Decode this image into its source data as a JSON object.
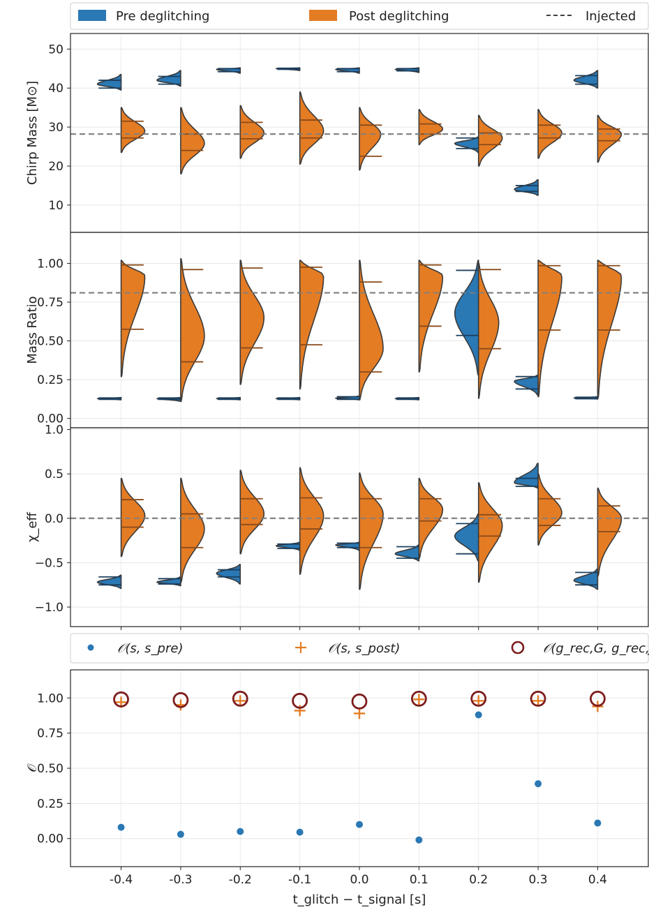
{
  "legend_top": {
    "pre": "Pre deglitching",
    "post": "Post deglitching",
    "injected": "Injected"
  },
  "legend_bottom": {
    "pre_overlap": "𝒪(s, s_pre)",
    "post_overlap": "𝒪(s, s_post)",
    "recovered_overlap": "𝒪(g_rec,G, g_rec,J)"
  },
  "colors": {
    "pre": "#2a78b4",
    "post": "#e47c24",
    "injected": "#808080",
    "recovered": "#7d1d1d"
  },
  "xlabel": "t_glitch − t_signal [s]",
  "x_ticks": [
    "-0.4",
    "-0.3",
    "-0.2",
    "-0.1",
    "0.0",
    "0.1",
    "0.2",
    "0.3",
    "0.4"
  ],
  "chart_data": [
    {
      "type": "violin",
      "ylabel": "Chirp Mass [M⊙]",
      "ylim": [
        3,
        54
      ],
      "yticks": [
        10,
        20,
        30,
        40,
        50
      ],
      "injected": 28.2,
      "x": [
        -0.4,
        -0.3,
        -0.2,
        -0.1,
        0.0,
        0.1,
        0.2,
        0.3,
        0.4
      ],
      "pre": [
        {
          "lo": 39.5,
          "hi": 43.5,
          "mode": 41.0,
          "q_lo": 40.0,
          "q_hi": 42.0,
          "w": 1.0
        },
        {
          "lo": 40.5,
          "hi": 44.5,
          "mode": 42.0,
          "q_lo": 41.0,
          "q_hi": 43.0,
          "w": 1.0
        },
        {
          "lo": 43.8,
          "hi": 45.2,
          "mode": 44.8,
          "q_lo": 44.2,
          "q_hi": 45.0,
          "w": 1.0
        },
        {
          "lo": 44.5,
          "hi": 45.2,
          "mode": 45.0,
          "q_lo": 44.8,
          "q_hi": 45.1,
          "w": 1.0
        },
        {
          "lo": 43.8,
          "hi": 45.2,
          "mode": 44.8,
          "q_lo": 44.2,
          "q_hi": 45.0,
          "w": 1.0
        },
        {
          "lo": 44.0,
          "hi": 45.2,
          "mode": 44.8,
          "q_lo": 44.4,
          "q_hi": 45.0,
          "w": 1.0
        },
        {
          "lo": 23.5,
          "hi": 27.5,
          "mode": 25.8,
          "q_lo": 24.5,
          "q_hi": 27.2,
          "w": 1.0
        },
        {
          "lo": 12.5,
          "hi": 16.5,
          "mode": 14.0,
          "q_lo": 13.5,
          "q_hi": 15.0,
          "w": 1.0
        },
        {
          "lo": 40.0,
          "hi": 44.5,
          "mode": 42.0,
          "q_lo": 41.0,
          "q_hi": 43.2,
          "w": 1.0
        }
      ],
      "post": [
        {
          "lo": 23.5,
          "hi": 35.0,
          "mode": 29.0,
          "q_lo": 27.2,
          "q_hi": 31.5,
          "w": 1.0
        },
        {
          "lo": 18.0,
          "hi": 35.0,
          "mode": 25.8,
          "q_lo": 24.0,
          "q_hi": 28.2,
          "w": 1.0
        },
        {
          "lo": 22.0,
          "hi": 35.5,
          "mode": 28.5,
          "q_lo": 27.0,
          "q_hi": 31.2,
          "w": 1.0
        },
        {
          "lo": 20.5,
          "hi": 39.0,
          "mode": 29.0,
          "q_lo": 27.2,
          "q_hi": 31.8,
          "w": 1.0
        },
        {
          "lo": 19.0,
          "hi": 35.0,
          "mode": 28.2,
          "q_lo": 22.5,
          "q_hi": 30.5,
          "w": 0.9
        },
        {
          "lo": 25.5,
          "hi": 34.5,
          "mode": 29.5,
          "q_lo": 28.2,
          "q_hi": 30.8,
          "w": 1.0
        },
        {
          "lo": 20.0,
          "hi": 33.0,
          "mode": 27.2,
          "q_lo": 25.5,
          "q_hi": 28.5,
          "w": 1.0
        },
        {
          "lo": 22.0,
          "hi": 34.5,
          "mode": 28.5,
          "q_lo": 27.2,
          "q_hi": 30.5,
          "w": 1.0
        },
        {
          "lo": 21.0,
          "hi": 33.0,
          "mode": 28.2,
          "q_lo": 26.5,
          "q_hi": 29.5,
          "w": 1.0
        }
      ]
    },
    {
      "type": "violin",
      "ylabel": "Mass Ratio",
      "ylim": [
        -0.06,
        1.2
      ],
      "yticks": [
        0.0,
        0.25,
        0.5,
        0.75,
        1.0
      ],
      "yticklabels": [
        "0.00",
        "0.25",
        "0.50",
        "0.75",
        "1.00"
      ],
      "injected": 0.81,
      "x": [
        -0.4,
        -0.3,
        -0.2,
        -0.1,
        0.0,
        0.1,
        0.2,
        0.3,
        0.4
      ],
      "pre": [
        {
          "lo": 0.12,
          "hi": 0.135,
          "mode": 0.128,
          "q_lo": 0.123,
          "q_hi": 0.132,
          "w": 1.0
        },
        {
          "lo": 0.11,
          "hi": 0.135,
          "mode": 0.128,
          "q_lo": 0.123,
          "q_hi": 0.132,
          "w": 1.0
        },
        {
          "lo": 0.12,
          "hi": 0.135,
          "mode": 0.128,
          "q_lo": 0.123,
          "q_hi": 0.132,
          "w": 1.0
        },
        {
          "lo": 0.12,
          "hi": 0.135,
          "mode": 0.128,
          "q_lo": 0.123,
          "q_hi": 0.132,
          "w": 1.0
        },
        {
          "lo": 0.12,
          "hi": 0.145,
          "mode": 0.13,
          "q_lo": 0.123,
          "q_hi": 0.14,
          "w": 1.0
        },
        {
          "lo": 0.12,
          "hi": 0.135,
          "mode": 0.128,
          "q_lo": 0.123,
          "q_hi": 0.132,
          "w": 1.0
        },
        {
          "lo": 0.28,
          "hi": 1.02,
          "mode": 0.68,
          "q_lo": 0.535,
          "q_hi": 0.955,
          "w": 1.0
        },
        {
          "lo": 0.15,
          "hi": 0.28,
          "mode": 0.24,
          "q_lo": 0.19,
          "q_hi": 0.27,
          "w": 1.0
        },
        {
          "lo": 0.125,
          "hi": 0.14,
          "mode": 0.132,
          "q_lo": 0.127,
          "q_hi": 0.137,
          "w": 1.0
        }
      ],
      "post": [
        {
          "lo": 0.27,
          "hi": 1.02,
          "mode": 0.92,
          "q_lo": 0.575,
          "q_hi": 0.99,
          "w": 1.0
        },
        {
          "lo": 0.11,
          "hi": 1.03,
          "mode": 0.53,
          "q_lo": 0.365,
          "q_hi": 0.96,
          "w": 1.0
        },
        {
          "lo": 0.22,
          "hi": 1.02,
          "mode": 0.65,
          "q_lo": 0.455,
          "q_hi": 0.97,
          "w": 1.0
        },
        {
          "lo": 0.19,
          "hi": 1.02,
          "mode": 0.92,
          "q_lo": 0.475,
          "q_hi": 0.975,
          "w": 1.0
        },
        {
          "lo": 0.12,
          "hi": 1.02,
          "mode": 0.45,
          "q_lo": 0.3,
          "q_hi": 0.88,
          "w": 1.0
        },
        {
          "lo": 0.3,
          "hi": 1.02,
          "mode": 0.92,
          "q_lo": 0.595,
          "q_hi": 0.99,
          "w": 1.0
        },
        {
          "lo": 0.13,
          "hi": 1.0,
          "mode": 0.62,
          "q_lo": 0.45,
          "q_hi": 0.96,
          "w": 0.85
        },
        {
          "lo": 0.14,
          "hi": 1.02,
          "mode": 0.92,
          "q_lo": 0.57,
          "q_hi": 0.985,
          "w": 1.0
        },
        {
          "lo": 0.13,
          "hi": 1.02,
          "mode": 0.92,
          "q_lo": 0.57,
          "q_hi": 0.985,
          "w": 1.0
        }
      ]
    },
    {
      "type": "violin",
      "ylabel": "χ_eff",
      "ylim": [
        -1.22,
        1.02
      ],
      "yticks": [
        -1.0,
        -0.5,
        0.0,
        0.5,
        1.0
      ],
      "yticklabels": [
        "−1.0",
        "−0.5",
        "0.0",
        "0.5",
        "1.0"
      ],
      "injected": 0.0,
      "x": [
        -0.4,
        -0.3,
        -0.2,
        -0.1,
        0.0,
        0.1,
        0.2,
        0.3,
        0.4
      ],
      "pre": [
        {
          "lo": -0.79,
          "hi": -0.64,
          "mode": -0.72,
          "q_lo": -0.75,
          "q_hi": -0.66,
          "w": 1.0
        },
        {
          "lo": -0.76,
          "hi": -0.66,
          "mode": -0.72,
          "q_lo": -0.74,
          "q_hi": -0.68,
          "w": 1.0
        },
        {
          "lo": -0.74,
          "hi": -0.52,
          "mode": -0.62,
          "q_lo": -0.66,
          "q_hi": -0.58,
          "w": 1.0
        },
        {
          "lo": -0.36,
          "hi": -0.27,
          "mode": -0.31,
          "q_lo": -0.34,
          "q_hi": -0.29,
          "w": 1.0
        },
        {
          "lo": -0.36,
          "hi": -0.27,
          "mode": -0.3,
          "q_lo": -0.33,
          "q_hi": -0.28,
          "w": 1.0
        },
        {
          "lo": -0.48,
          "hi": -0.3,
          "mode": -0.4,
          "q_lo": -0.45,
          "q_hi": -0.32,
          "w": 1.0
        },
        {
          "lo": -0.48,
          "hi": 0.05,
          "mode": -0.2,
          "q_lo": -0.4,
          "q_hi": -0.06,
          "w": 1.0
        },
        {
          "lo": 0.34,
          "hi": 0.62,
          "mode": 0.4,
          "q_lo": 0.36,
          "q_hi": 0.45,
          "w": 1.0
        },
        {
          "lo": -0.8,
          "hi": -0.57,
          "mode": -0.7,
          "q_lo": -0.75,
          "q_hi": -0.61,
          "w": 1.0
        }
      ],
      "post": [
        {
          "lo": -0.43,
          "hi": 0.45,
          "mode": 0.03,
          "q_lo": -0.1,
          "q_hi": 0.21,
          "w": 1.0
        },
        {
          "lo": -0.72,
          "hi": 0.45,
          "mode": -0.12,
          "q_lo": -0.33,
          "q_hi": 0.05,
          "w": 1.0
        },
        {
          "lo": -0.4,
          "hi": 0.54,
          "mode": 0.05,
          "q_lo": -0.07,
          "q_hi": 0.22,
          "w": 1.0
        },
        {
          "lo": -0.63,
          "hi": 0.57,
          "mode": 0.03,
          "q_lo": -0.12,
          "q_hi": 0.23,
          "w": 1.0
        },
        {
          "lo": -0.8,
          "hi": 0.51,
          "mode": 0.05,
          "q_lo": -0.33,
          "q_hi": 0.22,
          "w": 1.0
        },
        {
          "lo": -0.45,
          "hi": 0.45,
          "mode": 0.1,
          "q_lo": -0.03,
          "q_hi": 0.22,
          "w": 1.0
        },
        {
          "lo": -0.72,
          "hi": 0.4,
          "mode": -0.08,
          "q_lo": -0.2,
          "q_hi": 0.04,
          "w": 1.0
        },
        {
          "lo": -0.3,
          "hi": 0.5,
          "mode": 0.06,
          "q_lo": -0.08,
          "q_hi": 0.22,
          "w": 1.0
        },
        {
          "lo": -0.65,
          "hi": 0.34,
          "mode": 0.0,
          "q_lo": -0.15,
          "q_hi": 0.14,
          "w": 1.0
        }
      ]
    },
    {
      "type": "scatter",
      "ylabel": "𝒪",
      "ylim": [
        -0.2,
        1.2
      ],
      "yticks": [
        0.0,
        0.25,
        0.5,
        0.75,
        1.0
      ],
      "yticklabels": [
        "0.00",
        "0.25",
        "0.50",
        "0.75",
        "1.00"
      ],
      "x": [
        -0.4,
        -0.3,
        -0.2,
        -0.1,
        0.0,
        0.1,
        0.2,
        0.3,
        0.4
      ],
      "series": [
        {
          "name": "𝒪(s, s_pre)",
          "marker": "dot",
          "values": [
            0.08,
            0.03,
            0.05,
            0.045,
            0.1,
            -0.01,
            0.88,
            0.39,
            0.11
          ]
        },
        {
          "name": "𝒪(s, s_post)",
          "marker": "plus",
          "values": [
            0.97,
            0.95,
            0.98,
            0.91,
            0.89,
            0.99,
            0.98,
            0.98,
            0.94
          ]
        },
        {
          "name": "𝒪(g_rec,G, g_rec,J)",
          "marker": "circle",
          "values": [
            0.99,
            0.985,
            0.995,
            0.98,
            0.975,
            0.995,
            0.995,
            0.995,
            0.995
          ]
        }
      ]
    }
  ]
}
